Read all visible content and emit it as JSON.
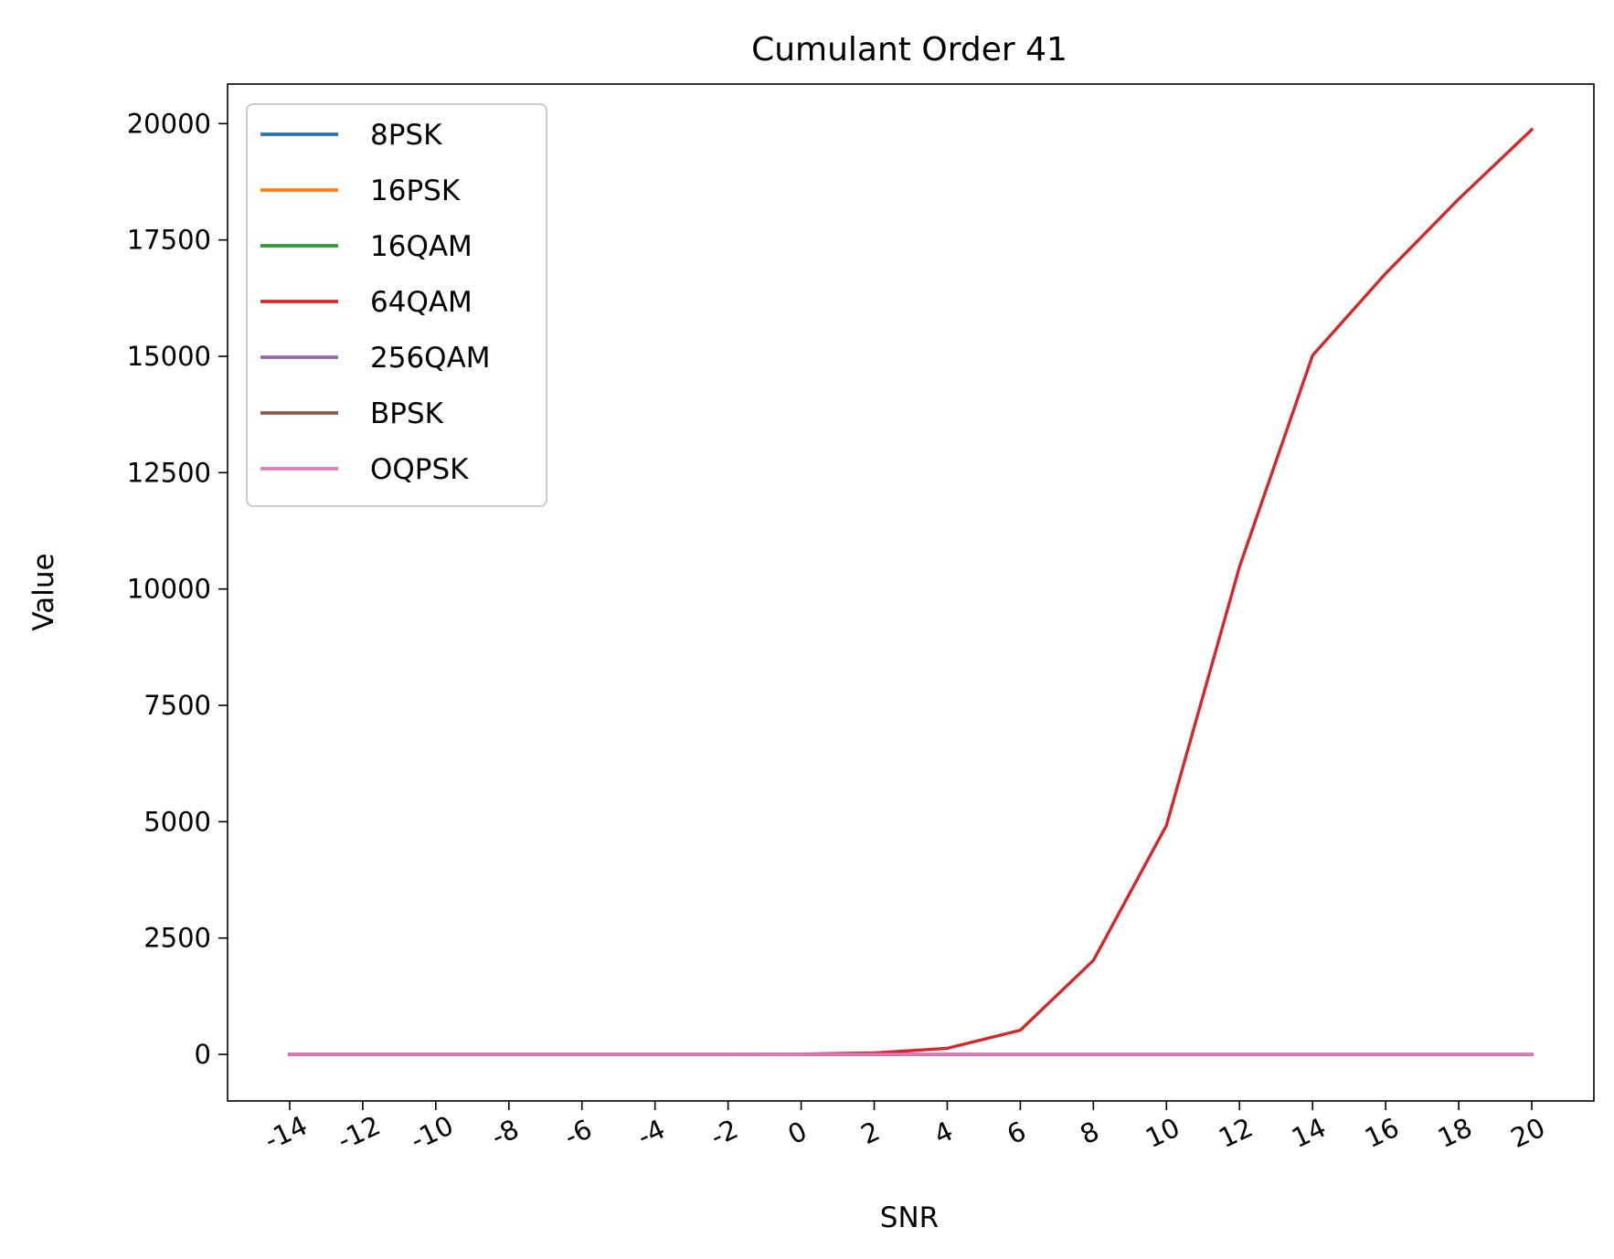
{
  "chart_data": {
    "type": "line",
    "title": "Cumulant Order 41",
    "xlabel": "SNR",
    "ylabel": "Value",
    "x": [
      -14,
      -12,
      -10,
      -8,
      -6,
      -4,
      -2,
      0,
      2,
      4,
      6,
      8,
      10,
      12,
      14,
      16,
      18,
      20
    ],
    "x_tick_labels": [
      "-14",
      "-12",
      "-10",
      "-8",
      "-6",
      "-4",
      "-2",
      "0",
      "2",
      "4",
      "6",
      "8",
      "10",
      "12",
      "14",
      "16",
      "18",
      "20"
    ],
    "y_ticks": [
      0,
      2500,
      5000,
      7500,
      10000,
      12500,
      15000,
      17500,
      20000
    ],
    "y_tick_labels": [
      "0",
      "2500",
      "5000",
      "7500",
      "10000",
      "12500",
      "15000",
      "17500",
      "20000"
    ],
    "xlim": [
      -15.7,
      21.7
    ],
    "ylim": [
      -1000,
      20850
    ],
    "grid": false,
    "legend_position": "upper-left",
    "series": [
      {
        "name": "8PSK",
        "color": "#1f77b4",
        "values": [
          0,
          0,
          0,
          0,
          0,
          0,
          0,
          0,
          0,
          0,
          0,
          0,
          0,
          0,
          0,
          0,
          0,
          0
        ]
      },
      {
        "name": "16PSK",
        "color": "#ff7f0e",
        "values": [
          0,
          0,
          0,
          0,
          0,
          0,
          0,
          0,
          0,
          0,
          0,
          0,
          0,
          0,
          0,
          0,
          0,
          0
        ]
      },
      {
        "name": "16QAM",
        "color": "#2ca02c",
        "values": [
          0,
          0,
          0,
          0,
          0,
          0,
          0,
          0,
          0,
          0,
          0,
          0,
          0,
          0,
          0,
          0,
          0,
          0
        ]
      },
      {
        "name": "64QAM",
        "color": "#d62728",
        "values": [
          0,
          0,
          0,
          0,
          0,
          0,
          0,
          5,
          30,
          130,
          520,
          2020,
          4920,
          10480,
          15020,
          16780,
          18380,
          19870
        ]
      },
      {
        "name": "256QAM",
        "color": "#9467bd",
        "values": [
          0,
          0,
          0,
          0,
          0,
          0,
          0,
          0,
          0,
          0,
          0,
          0,
          0,
          0,
          0,
          0,
          0,
          0
        ]
      },
      {
        "name": "BPSK",
        "color": "#8c564b",
        "values": [
          0,
          0,
          0,
          0,
          0,
          0,
          0,
          0,
          0,
          0,
          0,
          0,
          0,
          0,
          0,
          0,
          0,
          0
        ]
      },
      {
        "name": "OQPSK",
        "color": "#e377c2",
        "values": [
          0,
          0,
          0,
          0,
          0,
          0,
          0,
          0,
          0,
          0,
          0,
          0,
          0,
          0,
          0,
          0,
          0,
          0
        ]
      }
    ]
  }
}
